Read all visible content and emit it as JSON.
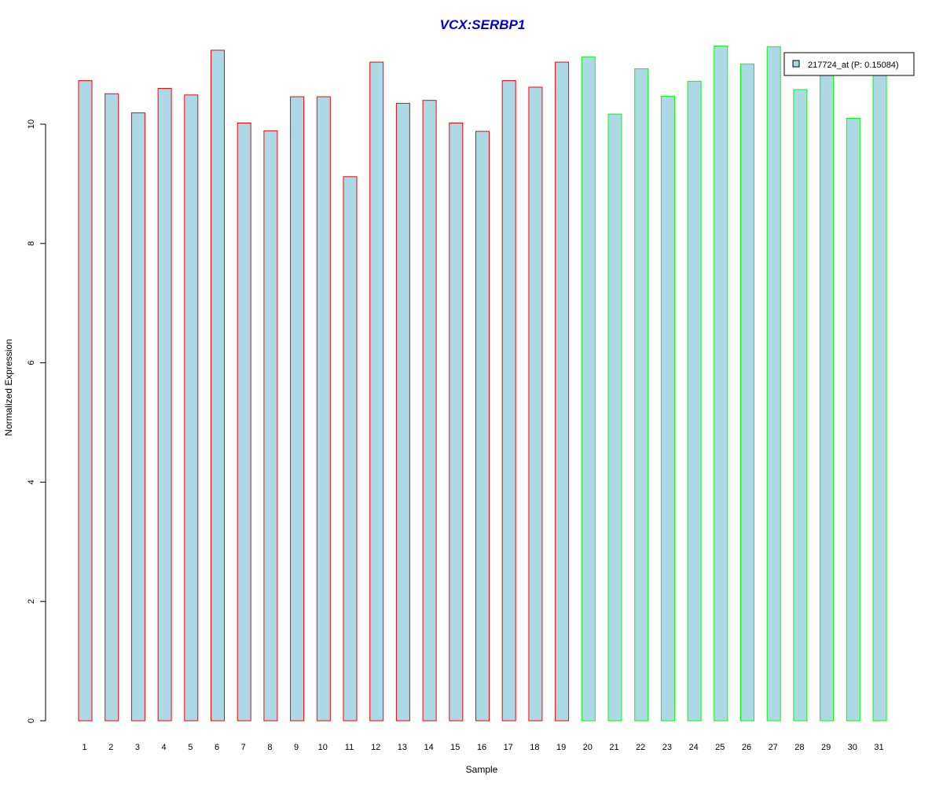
{
  "chart_data": {
    "type": "bar",
    "title": "VCX:SERBP1",
    "xlabel": "Sample",
    "ylabel": "Normalized Expression",
    "ylim": [
      0,
      11.5
    ],
    "yticks": [
      0,
      2,
      4,
      6,
      8,
      10
    ],
    "grid": false,
    "legend_position": "top-right",
    "categories": [
      "1",
      "2",
      "3",
      "4",
      "5",
      "6",
      "7",
      "8",
      "9",
      "10",
      "11",
      "12",
      "13",
      "14",
      "15",
      "16",
      "17",
      "18",
      "19",
      "20",
      "21",
      "22",
      "23",
      "24",
      "25",
      "26",
      "27",
      "28",
      "29",
      "30",
      "31"
    ],
    "series": [
      {
        "name": "217724_at (P: 0.15084)",
        "fill": "#ADD8E6",
        "values": [
          10.73,
          10.51,
          10.19,
          10.6,
          10.49,
          11.24,
          10.02,
          9.89,
          10.46,
          10.46,
          9.12,
          11.04,
          10.35,
          10.4,
          10.02,
          9.88,
          10.73,
          10.62,
          11.04,
          11.13,
          10.17,
          10.93,
          10.47,
          10.72,
          11.31,
          11.01,
          11.3,
          10.58,
          10.88,
          10.1,
          10.88
        ]
      }
    ],
    "group_borders": [
      "#FF0000",
      "#FF0000",
      "#FF0000",
      "#FF0000",
      "#FF0000",
      "#FF0000",
      "#FF0000",
      "#FF0000",
      "#FF0000",
      "#FF0000",
      "#FF0000",
      "#FF0000",
      "#FF0000",
      "#FF0000",
      "#FF0000",
      "#FF0000",
      "#FF0000",
      "#FF0000",
      "#FF0000",
      "#00FF00",
      "#00FF00",
      "#00FF00",
      "#00FF00",
      "#00FF00",
      "#00FF00",
      "#00FF00",
      "#00FF00",
      "#00FF00",
      "#00FF00",
      "#00FF00",
      "#00FF00"
    ],
    "colors": {
      "title": "#0000CC",
      "bar_fill": "#ADD8E6",
      "group1_border": "#FF0000",
      "group2_border": "#00FF00"
    }
  }
}
